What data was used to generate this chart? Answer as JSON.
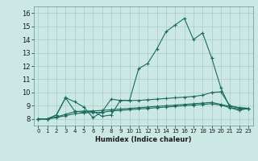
{
  "xlabel": "Humidex (Indice chaleur)",
  "background_color": "#cce8e4",
  "grid_color": "#b0d0cc",
  "line_color": "#1a6b5e",
  "xlim": [
    -0.5,
    23.5
  ],
  "ylim": [
    7.5,
    16.5
  ],
  "yticks": [
    8,
    9,
    10,
    11,
    12,
    13,
    14,
    15,
    16
  ],
  "xticks": [
    0,
    1,
    2,
    3,
    4,
    5,
    6,
    7,
    8,
    9,
    10,
    11,
    12,
    13,
    14,
    15,
    16,
    17,
    18,
    19,
    20,
    21,
    22,
    23
  ],
  "series": [
    [
      8.0,
      8.0,
      8.3,
      9.6,
      8.6,
      8.5,
      8.6,
      8.2,
      8.3,
      9.4,
      9.4,
      11.8,
      12.2,
      13.3,
      14.6,
      15.1,
      15.6,
      14.0,
      14.5,
      12.6,
      10.35,
      8.85,
      8.65,
      8.8
    ],
    [
      8.0,
      8.0,
      8.3,
      9.6,
      9.3,
      8.9,
      8.1,
      8.55,
      9.5,
      9.4,
      9.4,
      9.4,
      9.45,
      9.5,
      9.55,
      9.6,
      9.65,
      9.7,
      9.8,
      10.0,
      10.05,
      9.0,
      8.85,
      8.8
    ],
    [
      8.0,
      8.0,
      8.15,
      8.35,
      8.55,
      8.6,
      8.6,
      8.65,
      8.7,
      8.75,
      8.8,
      8.85,
      8.9,
      8.95,
      9.0,
      9.05,
      9.1,
      9.15,
      9.2,
      9.25,
      9.1,
      8.95,
      8.85,
      8.8
    ],
    [
      8.0,
      8.0,
      8.1,
      8.25,
      8.4,
      8.45,
      8.5,
      8.5,
      8.6,
      8.65,
      8.7,
      8.75,
      8.8,
      8.85,
      8.9,
      8.95,
      9.0,
      9.05,
      9.1,
      9.15,
      9.05,
      8.85,
      8.75,
      8.75
    ]
  ]
}
